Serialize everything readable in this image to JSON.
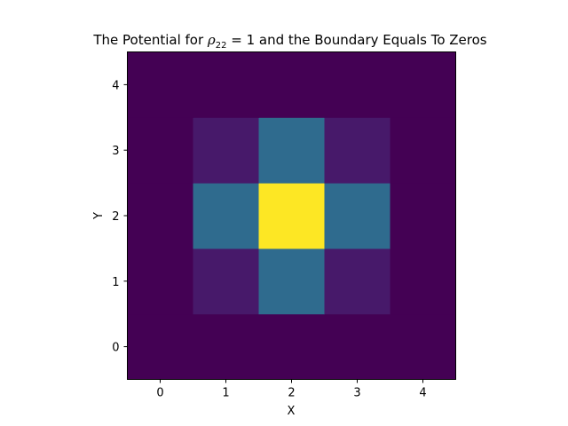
{
  "chart_data": {
    "type": "heatmap",
    "title": {
      "before": "The Potential for ",
      "math_symbol": "ρ",
      "math_subscript": "22",
      "math_rest": " = 1",
      "after": " and the Boundary Equals To Zeros"
    },
    "xlabel": "X",
    "ylabel": "Y",
    "x_ticks": [
      "0",
      "1",
      "2",
      "3",
      "4"
    ],
    "y_ticks": [
      "0",
      "1",
      "2",
      "3",
      "4"
    ],
    "xlim": [
      -0.5,
      4.5
    ],
    "ylim": [
      -0.5,
      4.5
    ],
    "colormap": "viridis",
    "value_range": [
      0,
      1
    ],
    "y_origin": "lower",
    "grid": false,
    "z": [
      [
        0,
        0,
        0,
        0,
        0
      ],
      [
        0,
        0.07,
        0.35,
        0.07,
        0
      ],
      [
        0,
        0.35,
        1.0,
        0.35,
        0
      ],
      [
        0,
        0.07,
        0.35,
        0.07,
        0
      ],
      [
        0,
        0,
        0,
        0,
        0
      ]
    ]
  }
}
